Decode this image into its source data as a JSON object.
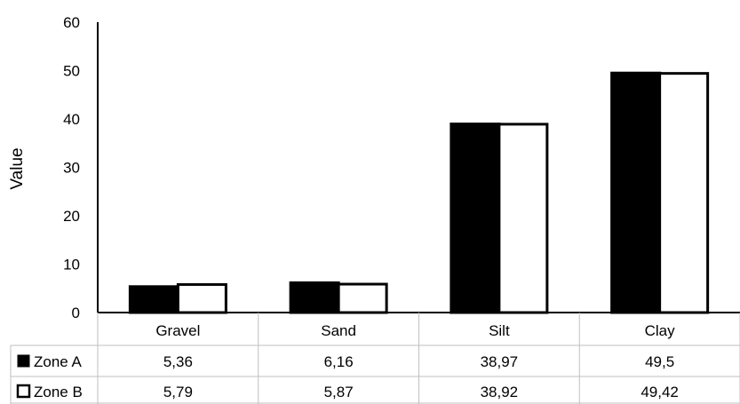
{
  "chart_data": {
    "type": "bar",
    "title": "",
    "xlabel": "",
    "ylabel": "Value",
    "ylim": [
      0,
      60
    ],
    "yticks": [
      0,
      10,
      20,
      30,
      40,
      50,
      60
    ],
    "categories": [
      "Gravel",
      "Sand",
      "Silt",
      "Clay"
    ],
    "series": [
      {
        "name": "Zone A",
        "values": [
          5.36,
          6.16,
          38.97,
          49.5
        ],
        "value_labels": [
          "5,36",
          "6,16",
          "38,97",
          "49,5"
        ],
        "color": "#000000"
      },
      {
        "name": "Zone B",
        "values": [
          5.79,
          5.87,
          38.92,
          49.42
        ],
        "value_labels": [
          "5,79",
          "5,87",
          "38,92",
          "49,42"
        ],
        "color": "#ffffff"
      }
    ],
    "legend": "data-table-left",
    "grid": false,
    "data_table": true
  }
}
